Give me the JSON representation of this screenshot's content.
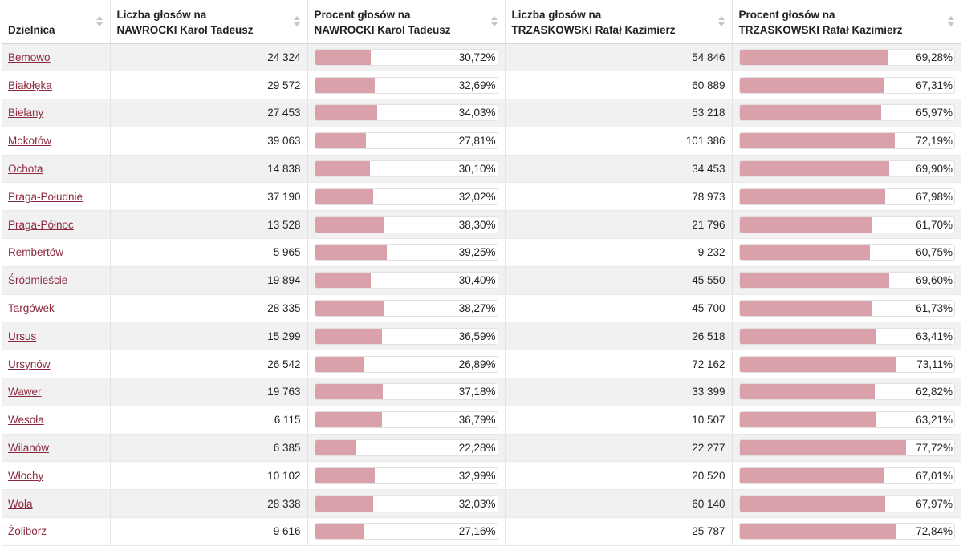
{
  "table": {
    "headers": [
      {
        "line1": "Dzielnica",
        "line2": ""
      },
      {
        "line1": "Liczba głosów na",
        "line2": "NAWROCKI Karol Tadeusz"
      },
      {
        "line1": "Procent głosów na",
        "line2": "NAWROCKI Karol Tadeusz"
      },
      {
        "line1": "Liczba głosów na",
        "line2": "TRZASKOWSKI Rafał Kazimierz"
      },
      {
        "line1": "Procent głosów na",
        "line2": "TRZASKOWSKI Rafał Kazimierz"
      }
    ],
    "rows": [
      {
        "district": "Bemowo",
        "nawrocki_votes": "24 324",
        "nawrocki_pct": "30,72%",
        "trzaskowski_votes": "54 846",
        "trzaskowski_pct": "69,28%"
      },
      {
        "district": "Białołęka",
        "nawrocki_votes": "29 572",
        "nawrocki_pct": "32,69%",
        "trzaskowski_votes": "60 889",
        "trzaskowski_pct": "67,31%"
      },
      {
        "district": "Bielany",
        "nawrocki_votes": "27 453",
        "nawrocki_pct": "34,03%",
        "trzaskowski_votes": "53 218",
        "trzaskowski_pct": "65,97%"
      },
      {
        "district": "Mokotów",
        "nawrocki_votes": "39 063",
        "nawrocki_pct": "27,81%",
        "trzaskowski_votes": "101 386",
        "trzaskowski_pct": "72,19%"
      },
      {
        "district": "Ochota",
        "nawrocki_votes": "14 838",
        "nawrocki_pct": "30,10%",
        "trzaskowski_votes": "34 453",
        "trzaskowski_pct": "69,90%"
      },
      {
        "district": "Praga-Południe",
        "nawrocki_votes": "37 190",
        "nawrocki_pct": "32,02%",
        "trzaskowski_votes": "78 973",
        "trzaskowski_pct": "67,98%"
      },
      {
        "district": "Praga-Północ",
        "nawrocki_votes": "13 528",
        "nawrocki_pct": "38,30%",
        "trzaskowski_votes": "21 796",
        "trzaskowski_pct": "61,70%"
      },
      {
        "district": "Rembertów",
        "nawrocki_votes": "5 965",
        "nawrocki_pct": "39,25%",
        "trzaskowski_votes": "9 232",
        "trzaskowski_pct": "60,75%"
      },
      {
        "district": "Śródmieście",
        "nawrocki_votes": "19 894",
        "nawrocki_pct": "30,40%",
        "trzaskowski_votes": "45 550",
        "trzaskowski_pct": "69,60%"
      },
      {
        "district": "Targówek",
        "nawrocki_votes": "28 335",
        "nawrocki_pct": "38,27%",
        "trzaskowski_votes": "45 700",
        "trzaskowski_pct": "61,73%"
      },
      {
        "district": "Ursus",
        "nawrocki_votes": "15 299",
        "nawrocki_pct": "36,59%",
        "trzaskowski_votes": "26 518",
        "trzaskowski_pct": "63,41%"
      },
      {
        "district": "Ursynów",
        "nawrocki_votes": "26 542",
        "nawrocki_pct": "26,89%",
        "trzaskowski_votes": "72 162",
        "trzaskowski_pct": "73,11%"
      },
      {
        "district": "Wawer",
        "nawrocki_votes": "19 763",
        "nawrocki_pct": "37,18%",
        "trzaskowski_votes": "33 399",
        "trzaskowski_pct": "62,82%"
      },
      {
        "district": "Wesoła",
        "nawrocki_votes": "6 115",
        "nawrocki_pct": "36,79%",
        "trzaskowski_votes": "10 507",
        "trzaskowski_pct": "63,21%"
      },
      {
        "district": "Wilanów",
        "nawrocki_votes": "6 385",
        "nawrocki_pct": "22,28%",
        "trzaskowski_votes": "22 277",
        "trzaskowski_pct": "77,72%"
      },
      {
        "district": "Włochy",
        "nawrocki_votes": "10 102",
        "nawrocki_pct": "32,99%",
        "trzaskowski_votes": "20 520",
        "trzaskowski_pct": "67,01%"
      },
      {
        "district": "Wola",
        "nawrocki_votes": "28 338",
        "nawrocki_pct": "32,03%",
        "trzaskowski_votes": "60 140",
        "trzaskowski_pct": "67,97%"
      },
      {
        "district": "Żoliborz",
        "nawrocki_votes": "9 616",
        "nawrocki_pct": "27,16%",
        "trzaskowski_votes": "25 787",
        "trzaskowski_pct": "72,84%"
      }
    ]
  },
  "colors": {
    "bar_fill": "#dba1ab",
    "link": "#8c2a3e",
    "stripe": "#f1f1f1"
  },
  "icons": {
    "sort": "sort-arrows-icon"
  }
}
